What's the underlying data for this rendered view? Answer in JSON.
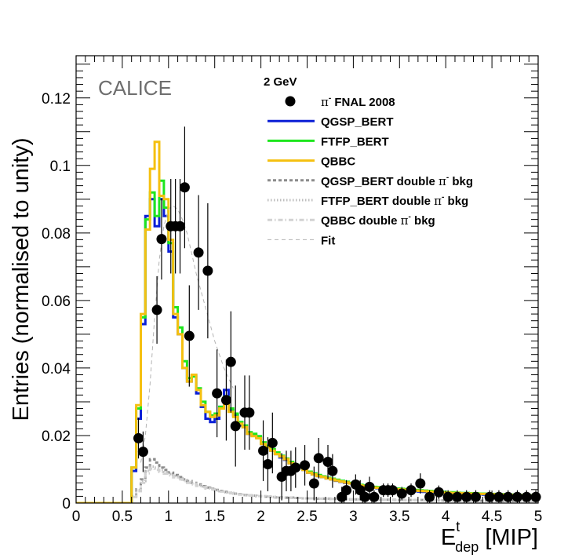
{
  "chart_data": {
    "type": "histogram",
    "brand": "CALICE",
    "energy_label": "2 GeV",
    "xlabel": {
      "main": "E",
      "sup": "t",
      "sub": "dep",
      "unit": " [MIP]"
    },
    "ylabel": "Entries (normalised to unity)",
    "xlim": [
      0,
      5
    ],
    "ylim": [
      0,
      0.1325
    ],
    "x_ticks": [
      0,
      0.5,
      1,
      1.5,
      2,
      2.5,
      3,
      3.5,
      4,
      4.5,
      5
    ],
    "x_tick_labels": [
      "0",
      "0.5",
      "1",
      "1.5",
      "2",
      "2.5",
      "3",
      "3.5",
      "4",
      "4.5",
      "5"
    ],
    "y_ticks": [
      0,
      0.02,
      0.04,
      0.06,
      0.08,
      0.1,
      0.12
    ],
    "y_tick_labels": [
      "0",
      "0.02",
      "0.04",
      "0.06",
      "0.08",
      "0.1",
      "0.12"
    ],
    "bin_width": 0.05,
    "bin_start": 0.0,
    "data_points": {
      "name": "π⁻ FNAL 2008",
      "legend_label": {
        "pi": "π",
        "sup": "-",
        "rest": " FNAL 2008"
      },
      "color": "#000000",
      "x": [
        0.675,
        0.725,
        0.875,
        0.925,
        1.025,
        1.075,
        1.125,
        1.175,
        1.225,
        1.325,
        1.425,
        1.525,
        1.625,
        1.675,
        1.725,
        1.825,
        1.875,
        2.025,
        2.075,
        2.125,
        2.225,
        2.275,
        2.325,
        2.375,
        2.475,
        2.575,
        2.625,
        2.725,
        2.775,
        2.875,
        2.925,
        3.025,
        3.075,
        3.125,
        3.175,
        3.225,
        3.325,
        3.375,
        3.425,
        3.525,
        3.625,
        3.725,
        3.825,
        3.925,
        4.025,
        4.125,
        4.225,
        4.325,
        4.475,
        4.575,
        4.675,
        4.775,
        4.875,
        4.975
      ],
      "y": [
        0.0192,
        0.0152,
        0.0572,
        0.0782,
        0.082,
        0.082,
        0.082,
        0.0935,
        0.0495,
        0.0742,
        0.0688,
        0.0325,
        0.0305,
        0.0418,
        0.0228,
        0.0268,
        0.0268,
        0.0155,
        0.0115,
        0.0178,
        0.0078,
        0.0095,
        0.0095,
        0.0105,
        0.0112,
        0.0058,
        0.0133,
        0.0122,
        0.0095,
        0.0018,
        0.0038,
        0.0055,
        0.0038,
        0.0018,
        0.0048,
        0.0018,
        0.0038,
        0.0038,
        0.0038,
        0.0028,
        0.0038,
        0.0058,
        0.0018,
        0.0032,
        0.0018,
        0.0018,
        0.0018,
        0.0018,
        0.0018,
        0.0018,
        0.0018,
        0.0018,
        0.0018,
        0.0018
      ],
      "yerr": [
        0.006,
        0.006,
        0.01,
        0.012,
        0.014,
        0.014,
        0.014,
        0.018,
        0.015,
        0.017,
        0.02,
        0.013,
        0.012,
        0.015,
        0.012,
        0.011,
        0.011,
        0.009,
        0.008,
        0.009,
        0.007,
        0.006,
        0.006,
        0.006,
        0.006,
        0.005,
        0.006,
        0.005,
        0.005,
        0.003,
        0.003,
        0.003,
        0.003,
        0.002,
        0.003,
        0.002,
        0.002,
        0.002,
        0.002,
        0.002,
        0.002,
        0.003,
        0.002,
        0.002,
        0.002,
        0.002,
        0.002,
        0.002,
        0.002,
        0.002,
        0.002,
        0.002,
        0.002,
        0.002
      ]
    },
    "series": [
      {
        "name": "QGSP_BERT",
        "color": "#0a1fd6",
        "style": "solid",
        "values": [
          0,
          0,
          0,
          0,
          0,
          0,
          0,
          0,
          0,
          0,
          0,
          0,
          0.0095,
          0.025,
          0.053,
          0.085,
          0.09,
          0.082,
          0.09,
          0.085,
          0.0745,
          0.055,
          0.05,
          0.04,
          0.036,
          0.038,
          0.0325,
          0.0285,
          0.025,
          0.024,
          0.025,
          0.0285,
          0.0335,
          0.0275,
          0.026,
          0.023,
          0.0225,
          0.0205,
          0.02,
          0.0195,
          0.0175,
          0.0165,
          0.0155,
          0.0145,
          0.0135,
          0.0128,
          0.0118,
          0.011,
          0.0105,
          0.0098,
          0.009,
          0.0085,
          0.008,
          0.0077,
          0.0073,
          0.007,
          0.0066,
          0.0063,
          0.006,
          0.0058,
          0.0055,
          0.0052,
          0.005,
          0.0048,
          0.0046,
          0.0044,
          0.0043,
          0.0042,
          0.004,
          0.0039,
          0.0038,
          0.0037,
          0.0036,
          0.0035,
          0.0034,
          0.0033,
          0.0032,
          0.0031,
          0.003,
          0.003,
          0.0029,
          0.0029,
          0.0028,
          0.0028,
          0.0027,
          0.0027,
          0.0026,
          0.0026,
          0.0025,
          0.0025,
          0.0024,
          0.0024,
          0.0023,
          0.0023,
          0.0022,
          0.0022,
          0.0021,
          0.0021,
          0.002,
          0.002
        ]
      },
      {
        "name": "FTFP_BERT",
        "color": "#1ee61e",
        "style": "solid",
        "values": [
          0,
          0,
          0,
          0,
          0,
          0,
          0,
          0,
          0,
          0,
          0,
          0,
          0.0105,
          0.028,
          0.055,
          0.084,
          0.092,
          0.085,
          0.0955,
          0.0875,
          0.077,
          0.058,
          0.052,
          0.042,
          0.037,
          0.0375,
          0.034,
          0.03,
          0.027,
          0.026,
          0.0265,
          0.0285,
          0.0315,
          0.028,
          0.0265,
          0.024,
          0.023,
          0.021,
          0.0205,
          0.0198,
          0.018,
          0.017,
          0.016,
          0.015,
          0.014,
          0.0132,
          0.0122,
          0.0114,
          0.0108,
          0.01,
          0.0093,
          0.0088,
          0.0083,
          0.0079,
          0.0075,
          0.0072,
          0.0069,
          0.0066,
          0.0063,
          0.006,
          0.0057,
          0.0054,
          0.0052,
          0.005,
          0.0048,
          0.0047,
          0.0046,
          0.0045,
          0.0044,
          0.0043,
          0.0042,
          0.0041,
          0.004,
          0.0039,
          0.0038,
          0.0037,
          0.0036,
          0.0035,
          0.0034,
          0.0033,
          0.0032,
          0.0032,
          0.0031,
          0.003,
          0.003,
          0.0029,
          0.0029,
          0.0028,
          0.0028,
          0.0027,
          0.0027,
          0.0026,
          0.0026,
          0.0025,
          0.0025,
          0.0024,
          0.0024,
          0.0023,
          0.0023,
          0.0022
        ]
      },
      {
        "name": "QBBC",
        "color": "#f5c010",
        "style": "solid",
        "values": [
          0,
          0,
          0,
          0,
          0,
          0,
          0,
          0,
          0,
          0,
          0,
          0,
          0.0105,
          0.029,
          0.056,
          0.081,
          0.099,
          0.107,
          0.091,
          0.09,
          0.078,
          0.056,
          0.05,
          0.04,
          0.036,
          0.038,
          0.0335,
          0.029,
          0.027,
          0.0255,
          0.026,
          0.028,
          0.031,
          0.027,
          0.0255,
          0.0235,
          0.0225,
          0.0205,
          0.0198,
          0.0192,
          0.0175,
          0.0165,
          0.0155,
          0.0145,
          0.0138,
          0.013,
          0.0118,
          0.011,
          0.0105,
          0.0098,
          0.009,
          0.0085,
          0.008,
          0.0077,
          0.0073,
          0.007,
          0.0067,
          0.0064,
          0.0061,
          0.0058,
          0.0055,
          0.0052,
          0.005,
          0.0048,
          0.0046,
          0.0045,
          0.0044,
          0.0043,
          0.0042,
          0.0041,
          0.004,
          0.0039,
          0.0038,
          0.0037,
          0.0036,
          0.0035,
          0.0034,
          0.0033,
          0.0032,
          0.0031,
          0.0031,
          0.003,
          0.003,
          0.0029,
          0.0029,
          0.0028,
          0.0028,
          0.0027,
          0.0027,
          0.0026,
          0.0026,
          0.0025,
          0.0025,
          0.0024,
          0.0024,
          0.0023,
          0.0023,
          0.0022,
          0.0022,
          0.0021
        ]
      },
      {
        "name": "QGSP_BERT double π⁻ bkg",
        "legend_label": {
          "pre": "QGSP_BERT double ",
          "pi": "π",
          "sup": "-",
          "rest": " bkg"
        },
        "color": "#8c8c8c",
        "style": "dashed",
        "values": [
          0,
          0,
          0,
          0,
          0,
          0,
          0,
          0,
          0,
          0,
          0,
          0,
          0.002,
          0.004,
          0.007,
          0.0105,
          0.013,
          0.012,
          0.0105,
          0.0098,
          0.009,
          0.0083,
          0.0077,
          0.007,
          0.0065,
          0.006,
          0.0055,
          0.005,
          0.0046,
          0.0042,
          0.0039,
          0.0036,
          0.0033,
          0.003,
          0.0028,
          0.0026,
          0.0024,
          0.0023,
          0.0022,
          0.0021,
          0.002,
          0.0019,
          0.0018,
          0.0017,
          0.0017,
          0.0016,
          0.0016,
          0.0015,
          0.0015,
          0.0014,
          0.0014,
          0.0014,
          0.0013,
          0.0013,
          0.0013,
          0.0012,
          0.0012,
          0.0012,
          0.0012,
          0.0011,
          0.0011,
          0.0011,
          0.0011,
          0.001,
          0.001,
          0.001,
          0.001,
          0.001,
          0.001,
          0.0009,
          0.0009,
          0.0009,
          0.0009,
          0.0009,
          0.0009,
          0.0008,
          0.0008,
          0.0008,
          0.0008,
          0.0008,
          0.0008,
          0.0008,
          0.0007,
          0.0007,
          0.0007,
          0.0007,
          0.0007,
          0.0007,
          0.0007,
          0.0007,
          0.0006,
          0.0006,
          0.0006,
          0.0006,
          0.0006,
          0.0006,
          0.0006,
          0.0006,
          0.0006,
          0.0006
        ]
      },
      {
        "name": "FTFP_BERT double π⁻ bkg",
        "legend_label": {
          "pre": "FTFP_BERT double ",
          "pi": "π",
          "sup": "-",
          "rest": " bkg"
        },
        "color": "#bdbdbd",
        "style": "dotted",
        "values": [
          0,
          0,
          0,
          0,
          0,
          0,
          0,
          0,
          0,
          0,
          0,
          0,
          0.002,
          0.0038,
          0.0065,
          0.0095,
          0.0108,
          0.0105,
          0.0098,
          0.0092,
          0.0086,
          0.008,
          0.0074,
          0.0068,
          0.0063,
          0.0058,
          0.0053,
          0.0049,
          0.0045,
          0.0041,
          0.0038,
          0.0035,
          0.0032,
          0.003,
          0.0028,
          0.0026,
          0.0024,
          0.0023,
          0.0022,
          0.0021,
          0.002,
          0.0019,
          0.0018,
          0.0017,
          0.0017,
          0.0016,
          0.0016,
          0.0015,
          0.0015,
          0.0014,
          0.0014,
          0.0014,
          0.0013,
          0.0013,
          0.0013,
          0.0012,
          0.0012,
          0.0012,
          0.0012,
          0.0011,
          0.0011,
          0.0011,
          0.0011,
          0.001,
          0.001,
          0.001,
          0.001,
          0.001,
          0.001,
          0.0009,
          0.0009,
          0.0009,
          0.0009,
          0.0009,
          0.0009,
          0.0008,
          0.0008,
          0.0008,
          0.0008,
          0.0008,
          0.0008,
          0.0008,
          0.0007,
          0.0007,
          0.0007,
          0.0007,
          0.0007,
          0.0007,
          0.0007,
          0.0007,
          0.0006,
          0.0006,
          0.0006,
          0.0006,
          0.0006,
          0.0006,
          0.0006,
          0.0006,
          0.0006,
          0.0006
        ]
      },
      {
        "name": "QBBC double π⁻ bkg",
        "legend_label": {
          "pre": "QBBC double ",
          "pi": "π",
          "sup": "-",
          "rest": " bkg"
        },
        "color": "#d2d2d2",
        "style": "dashdot",
        "values": [
          0,
          0,
          0,
          0,
          0,
          0,
          0,
          0,
          0,
          0,
          0,
          0,
          0.0018,
          0.0035,
          0.006,
          0.0088,
          0.0102,
          0.0098,
          0.0092,
          0.0087,
          0.0082,
          0.0076,
          0.007,
          0.0065,
          0.006,
          0.0055,
          0.0051,
          0.0047,
          0.0043,
          0.004,
          0.0037,
          0.0034,
          0.0031,
          0.0029,
          0.0027,
          0.0025,
          0.0024,
          0.0023,
          0.0022,
          0.0021,
          0.002,
          0.0019,
          0.0018,
          0.0017,
          0.0017,
          0.0016,
          0.0016,
          0.0015,
          0.0015,
          0.0014,
          0.0014,
          0.0014,
          0.0013,
          0.0013,
          0.0013,
          0.0012,
          0.0012,
          0.0012,
          0.0012,
          0.0011,
          0.0011,
          0.0011,
          0.0011,
          0.001,
          0.001,
          0.001,
          0.001,
          0.001,
          0.001,
          0.0009,
          0.0009,
          0.0009,
          0.0009,
          0.0009,
          0.0009,
          0.0008,
          0.0008,
          0.0008,
          0.0008,
          0.0008,
          0.0008,
          0.0008,
          0.0007,
          0.0007,
          0.0007,
          0.0007,
          0.0007,
          0.0007,
          0.0007,
          0.0007,
          0.0006,
          0.0006,
          0.0006,
          0.0006,
          0.0006,
          0.0006,
          0.0006,
          0.0006,
          0.0006,
          0.0006
        ]
      }
    ],
    "fit": {
      "name": "Fit",
      "color": "#b4b4b4",
      "style": "thin-dashed",
      "x": [
        0.7,
        0.75,
        0.8,
        0.85,
        0.9,
        0.95,
        1.0,
        1.05,
        1.1,
        1.15,
        1.2,
        1.25,
        1.3,
        1.4,
        1.5,
        1.6,
        1.7
      ],
      "y": [
        0.012,
        0.02,
        0.035,
        0.055,
        0.072,
        0.082,
        0.087,
        0.088,
        0.087,
        0.084,
        0.08,
        0.074,
        0.068,
        0.058,
        0.048,
        0.04,
        0.034
      ]
    }
  }
}
